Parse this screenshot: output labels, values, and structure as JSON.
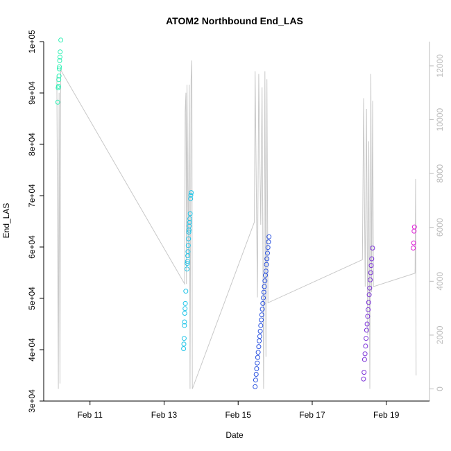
{
  "chart_data": {
    "type": "scatter",
    "title": "ATOM2 Northbound End_LAS",
    "xlabel": "Date",
    "ylabel": "End_LAS",
    "xlim": [
      "2024-02-09T18:00",
      "2024-02-20T04:00"
    ],
    "ylim": [
      30000,
      100000
    ],
    "x_ticks": [
      {
        "x": "2024-02-11",
        "label": "Feb 11"
      },
      {
        "x": "2024-02-13",
        "label": "Feb 13"
      },
      {
        "x": "2024-02-15",
        "label": "Feb 15"
      },
      {
        "x": "2024-02-17",
        "label": "Feb 17"
      },
      {
        "x": "2024-02-19",
        "label": "Feb 19"
      }
    ],
    "y_ticks": [
      {
        "value": 30000,
        "label": "3e+04"
      },
      {
        "value": 40000,
        "label": "4e+04"
      },
      {
        "value": 50000,
        "label": "5e+04"
      },
      {
        "value": 60000,
        "label": "6e+04"
      },
      {
        "value": 70000,
        "label": "7e+04"
      },
      {
        "value": 80000,
        "label": "8e+04"
      },
      {
        "value": 90000,
        "label": "9e+04"
      },
      {
        "value": 100000,
        "label": "1e+05"
      }
    ],
    "y2lim": [
      -450,
      12900
    ],
    "y2_ticks": [
      {
        "value": 0,
        "label": "0"
      },
      {
        "value": 2000,
        "label": "2000"
      },
      {
        "value": 4000,
        "label": "4000"
      },
      {
        "value": 6000,
        "label": "6000"
      },
      {
        "value": 8000,
        "label": "8000"
      },
      {
        "value": 10000,
        "label": "10000"
      },
      {
        "value": 12000,
        "label": "12000"
      }
    ],
    "series": [
      {
        "color": "#2ef0b4",
        "points": [
          [
            "2024-02-10T03:05",
            88200
          ],
          [
            "2024-02-10T03:25",
            91000
          ],
          [
            "2024-02-10T03:35",
            91300
          ],
          [
            "2024-02-10T03:45",
            92600
          ],
          [
            "2024-02-10T03:55",
            93300
          ],
          [
            "2024-02-10T04:05",
            94700
          ],
          [
            "2024-02-10T04:10",
            95100
          ],
          [
            "2024-02-10T04:20",
            96300
          ],
          [
            "2024-02-10T04:30",
            97000
          ],
          [
            "2024-02-10T04:40",
            98000
          ],
          [
            "2024-02-10T05:05",
            100300
          ]
        ]
      },
      {
        "color": "#1ec4e8",
        "points": [
          [
            "2024-02-13T12:40",
            40200
          ],
          [
            "2024-02-13T12:50",
            41100
          ],
          [
            "2024-02-13T13:00",
            42200
          ],
          [
            "2024-02-13T13:10",
            44700
          ],
          [
            "2024-02-13T13:15",
            45400
          ],
          [
            "2024-02-13T13:25",
            47100
          ],
          [
            "2024-02-13T13:35",
            48000
          ],
          [
            "2024-02-13T13:45",
            49000
          ],
          [
            "2024-02-13T14:05",
            51400
          ],
          [
            "2024-02-13T14:50",
            55700
          ],
          [
            "2024-02-13T15:00",
            56800
          ],
          [
            "2024-02-13T15:10",
            57200
          ],
          [
            "2024-02-13T15:20",
            58300
          ],
          [
            "2024-02-13T15:30",
            59100
          ],
          [
            "2024-02-13T15:40",
            60300
          ],
          [
            "2024-02-13T15:50",
            61600
          ],
          [
            "2024-02-13T16:00",
            62900
          ],
          [
            "2024-02-13T16:10",
            63300
          ],
          [
            "2024-02-13T16:20",
            64100
          ],
          [
            "2024-02-13T16:30",
            64800
          ],
          [
            "2024-02-13T16:40",
            65500
          ],
          [
            "2024-02-13T16:55",
            66500
          ],
          [
            "2024-02-13T17:10",
            69400
          ],
          [
            "2024-02-13T17:20",
            70100
          ],
          [
            "2024-02-13T17:35",
            70600
          ]
        ]
      },
      {
        "color": "#2a52e0",
        "points": [
          [
            "2024-02-15T11:00",
            32800
          ],
          [
            "2024-02-15T11:20",
            34100
          ],
          [
            "2024-02-15T11:40",
            35200
          ],
          [
            "2024-02-15T12:00",
            36300
          ],
          [
            "2024-02-15T12:20",
            37400
          ],
          [
            "2024-02-15T12:40",
            38500
          ],
          [
            "2024-02-15T13:00",
            39500
          ],
          [
            "2024-02-15T13:20",
            40600
          ],
          [
            "2024-02-15T13:40",
            41700
          ],
          [
            "2024-02-15T14:00",
            42600
          ],
          [
            "2024-02-15T14:20",
            43600
          ],
          [
            "2024-02-15T14:40",
            44700
          ],
          [
            "2024-02-15T15:00",
            45800
          ],
          [
            "2024-02-15T15:20",
            46800
          ],
          [
            "2024-02-15T15:40",
            47900
          ],
          [
            "2024-02-15T16:00",
            49000
          ],
          [
            "2024-02-15T16:20",
            50100
          ],
          [
            "2024-02-15T16:40",
            51200
          ],
          [
            "2024-02-15T17:00",
            52300
          ],
          [
            "2024-02-15T17:20",
            53400
          ],
          [
            "2024-02-15T17:40",
            54500
          ],
          [
            "2024-02-15T18:00",
            55300
          ],
          [
            "2024-02-15T18:20",
            56600
          ],
          [
            "2024-02-15T18:40",
            57700
          ],
          [
            "2024-02-15T19:00",
            58800
          ],
          [
            "2024-02-15T19:20",
            59900
          ],
          [
            "2024-02-15T19:40",
            61000
          ],
          [
            "2024-02-15T20:00",
            62000
          ]
        ]
      },
      {
        "color": "#7a30d8",
        "points": [
          [
            "2024-02-18T09:15",
            34300
          ],
          [
            "2024-02-18T09:35",
            35600
          ],
          [
            "2024-02-18T09:55",
            38100
          ],
          [
            "2024-02-18T10:15",
            39200
          ],
          [
            "2024-02-18T10:35",
            40700
          ],
          [
            "2024-02-18T10:55",
            42200
          ],
          [
            "2024-02-18T11:15",
            43800
          ],
          [
            "2024-02-18T11:35",
            45000
          ],
          [
            "2024-02-18T11:55",
            46500
          ],
          [
            "2024-02-18T12:15",
            47800
          ],
          [
            "2024-02-18T12:35",
            49200
          ],
          [
            "2024-02-18T12:55",
            50700
          ],
          [
            "2024-02-18T13:15",
            52000
          ],
          [
            "2024-02-18T13:35",
            53600
          ],
          [
            "2024-02-18T13:55",
            55000
          ],
          [
            "2024-02-18T14:15",
            56400
          ],
          [
            "2024-02-18T14:35",
            57700
          ],
          [
            "2024-02-18T15:05",
            59800
          ]
        ]
      },
      {
        "color": "#e020d8",
        "points": [
          [
            "2024-02-19T17:30",
            59800
          ],
          [
            "2024-02-19T17:45",
            60800
          ],
          [
            "2024-02-19T18:00",
            63100
          ],
          [
            "2024-02-19T18:15",
            63900
          ]
        ]
      }
    ],
    "secondary_series": {
      "color": "#c8c8c8",
      "axis": "right",
      "points": [
        [
          "2024-02-10T02:30",
          11600
        ],
        [
          "2024-02-10T03:30",
          0
        ],
        [
          "2024-02-10T04:00",
          11000
        ],
        [
          "2024-02-10T04:30",
          200
        ],
        [
          "2024-02-10T05:00",
          11900
        ],
        [
          "2024-02-10T05:30",
          11800
        ],
        [
          "2024-02-13T13:20",
          3900
        ],
        [
          "2024-02-13T13:40",
          10300
        ],
        [
          "2024-02-13T14:10",
          11000
        ],
        [
          "2024-02-13T14:30",
          3900
        ],
        [
          "2024-02-13T14:50",
          11300
        ],
        [
          "2024-02-13T15:40",
          4900
        ],
        [
          "2024-02-13T16:20",
          11300
        ],
        [
          "2024-02-13T16:50",
          0
        ],
        [
          "2024-02-13T17:30",
          11500
        ],
        [
          "2024-02-13T18:00",
          12200
        ],
        [
          "2024-02-13T18:20",
          0
        ],
        [
          "2024-02-15T10:30",
          6200
        ],
        [
          "2024-02-15T11:00",
          11800
        ],
        [
          "2024-02-15T12:30",
          3400
        ],
        [
          "2024-02-15T13:20",
          11700
        ],
        [
          "2024-02-15T14:40",
          6100
        ],
        [
          "2024-02-15T15:30",
          11200
        ],
        [
          "2024-02-15T16:30",
          0
        ],
        [
          "2024-02-15T17:20",
          11800
        ],
        [
          "2024-02-15T18:00",
          1200
        ],
        [
          "2024-02-15T18:40",
          11500
        ],
        [
          "2024-02-15T19:20",
          3200
        ],
        [
          "2024-02-18T08:30",
          4800
        ],
        [
          "2024-02-18T09:20",
          10800
        ],
        [
          "2024-02-18T10:20",
          3800
        ],
        [
          "2024-02-18T11:10",
          10400
        ],
        [
          "2024-02-18T12:00",
          2000
        ],
        [
          "2024-02-18T12:40",
          9200
        ],
        [
          "2024-02-18T13:20",
          0
        ],
        [
          "2024-02-18T14:00",
          11700
        ],
        [
          "2024-02-18T14:30",
          3600
        ],
        [
          "2024-02-18T15:10",
          10700
        ],
        [
          "2024-02-18T15:40",
          3800
        ],
        [
          "2024-02-19T18:40",
          4300
        ],
        [
          "2024-02-19T19:00",
          7800
        ],
        [
          "2024-02-19T19:20",
          500
        ]
      ]
    }
  }
}
